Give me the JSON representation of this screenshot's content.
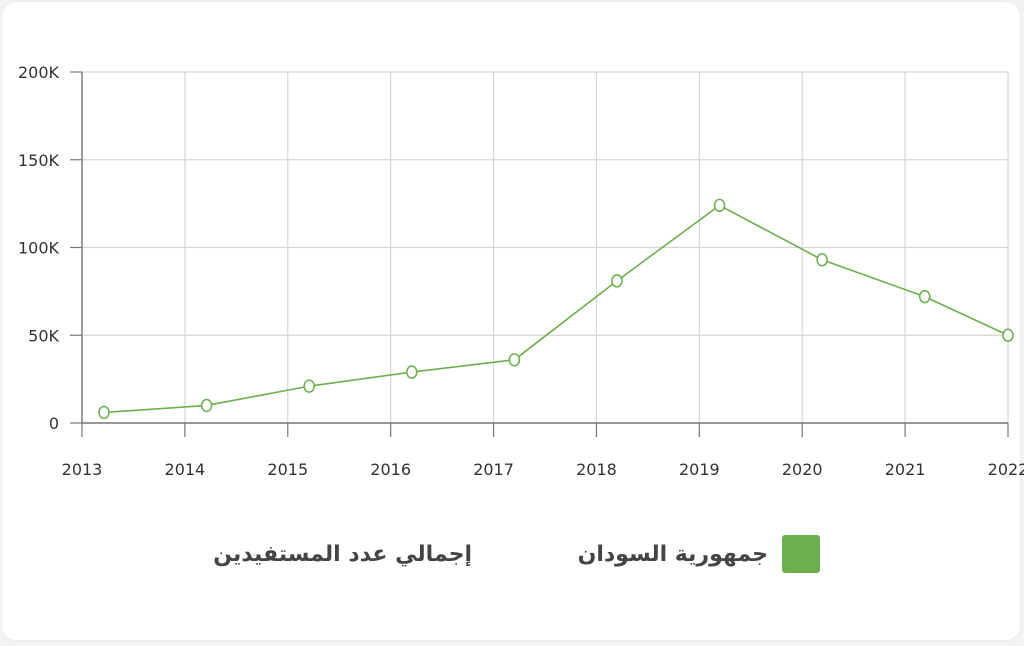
{
  "chart_data": {
    "type": "line",
    "title": "",
    "xlabel": "",
    "ylabel": "",
    "categories": [
      "2013",
      "2014",
      "2015",
      "2016",
      "2017",
      "2018",
      "2019",
      "2020",
      "2021",
      "2022"
    ],
    "ylim": [
      0,
      200000
    ],
    "yticks": [
      0,
      50000,
      100000,
      150000,
      200000
    ],
    "ytick_labels": [
      "0",
      "50K",
      "100K",
      "150K",
      "200K"
    ],
    "grid": true,
    "series": [
      {
        "name": "جمهورية السودان",
        "color": "#6ab04c",
        "values": [
          6000,
          10000,
          21000,
          29000,
          36000,
          81000,
          124000,
          93000,
          72000,
          50000
        ]
      }
    ],
    "legend": {
      "placement": "bottom",
      "series_label": "جمهورية السودان",
      "metric_label": "إجمالي عدد المستفيدين"
    }
  }
}
